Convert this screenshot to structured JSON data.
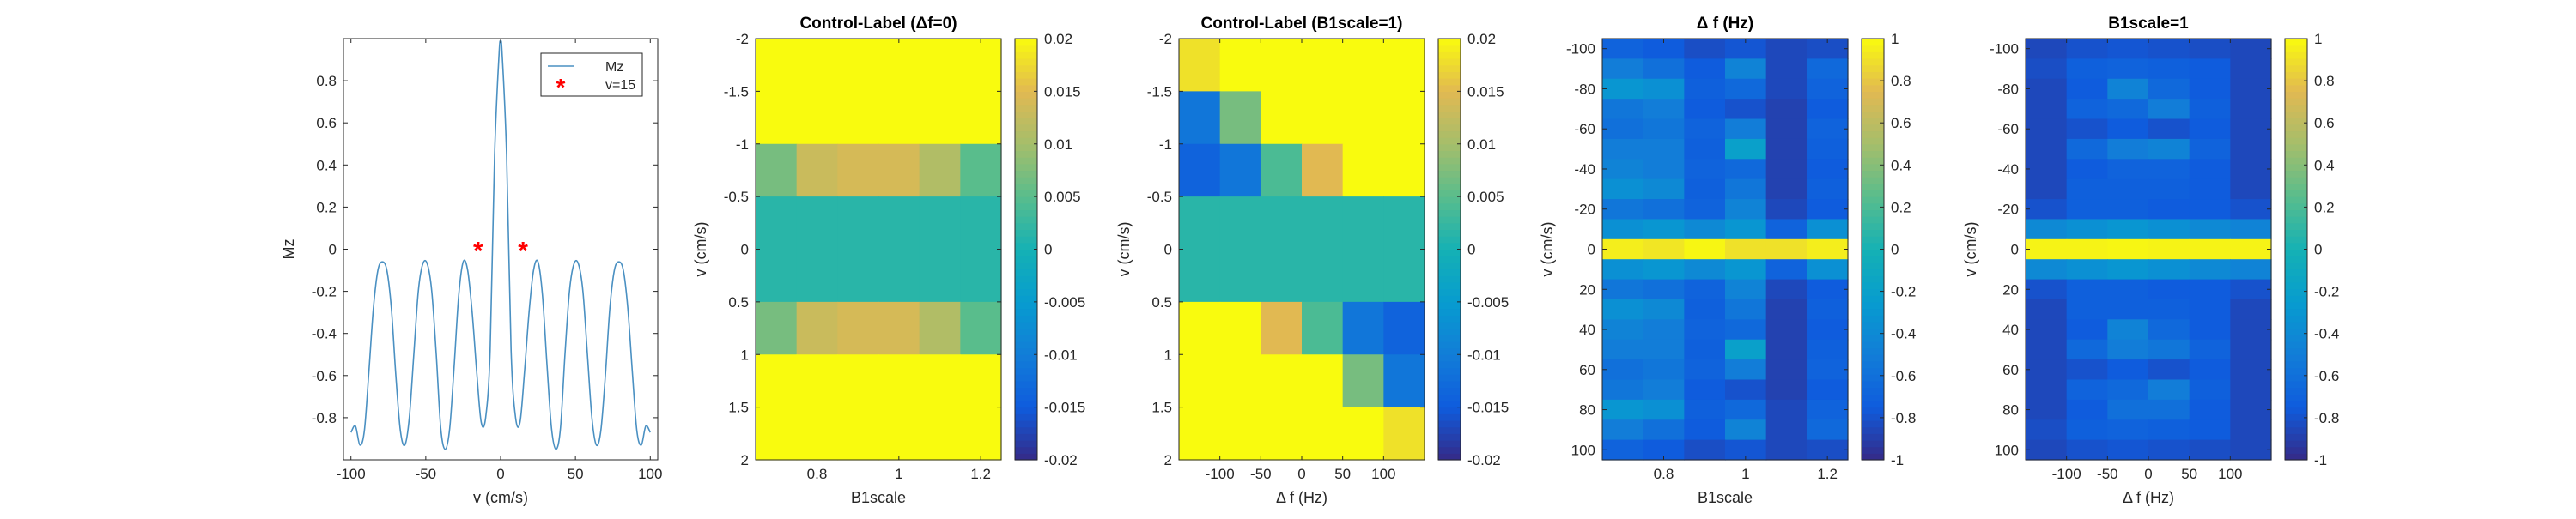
{
  "chart_data": [
    {
      "type": "line",
      "title": "",
      "xlabel": "v (cm/s)",
      "ylabel": "Mz",
      "xlim": [
        -105,
        105
      ],
      "ylim": [
        -1,
        1
      ],
      "xticks": [
        -100,
        -50,
        0,
        50,
        100
      ],
      "yticks": [
        -0.8,
        -0.6,
        -0.4,
        -0.2,
        0,
        0.2,
        0.4,
        0.6,
        0.8
      ],
      "legend_position": "top-right",
      "series": [
        {
          "name": "Mz",
          "kind": "line",
          "color": "#4A90C2",
          "x": [
            -100,
            -97,
            -94,
            -91,
            -88,
            -85,
            -82,
            -79,
            -76,
            -73,
            -70,
            -67,
            -64,
            -61,
            -58,
            -55,
            -52,
            -49,
            -46,
            -43,
            -40,
            -37,
            -34,
            -31,
            -28,
            -25,
            -22,
            -19,
            -16,
            -13,
            -10,
            -7,
            -4,
            -1,
            0,
            1,
            4,
            7,
            10,
            13,
            16,
            19,
            22,
            25,
            28,
            31,
            34,
            37,
            40,
            43,
            46,
            49,
            52,
            55,
            58,
            61,
            64,
            67,
            70,
            73,
            76,
            79,
            82,
            85,
            88,
            91,
            94,
            97,
            100
          ],
          "y": [
            -0.87,
            -0.84,
            -0.93,
            -0.86,
            -0.58,
            -0.28,
            -0.1,
            -0.06,
            -0.1,
            -0.28,
            -0.6,
            -0.86,
            -0.93,
            -0.8,
            -0.5,
            -0.2,
            -0.07,
            -0.07,
            -0.2,
            -0.5,
            -0.85,
            -0.95,
            -0.85,
            -0.55,
            -0.22,
            -0.06,
            -0.1,
            -0.3,
            -0.58,
            -0.82,
            -0.8,
            -0.48,
            0.45,
            0.93,
            0.98,
            0.93,
            0.45,
            -0.48,
            -0.8,
            -0.82,
            -0.58,
            -0.3,
            -0.1,
            -0.06,
            -0.22,
            -0.55,
            -0.85,
            -0.95,
            -0.85,
            -0.5,
            -0.2,
            -0.07,
            -0.07,
            -0.2,
            -0.5,
            -0.8,
            -0.93,
            -0.86,
            -0.6,
            -0.28,
            -0.1,
            -0.06,
            -0.1,
            -0.28,
            -0.58,
            -0.86,
            -0.93,
            -0.84,
            -0.87
          ]
        },
        {
          "name": "v=15",
          "kind": "marker",
          "color": "#FF0000",
          "x": [
            -15,
            15
          ],
          "y": [
            0,
            0
          ]
        }
      ]
    },
    {
      "type": "heatmap",
      "title": "Control-Label (Δf=0)",
      "xlabel": "B1scale",
      "ylabel": "v (cm/s)",
      "xticks": [
        0.8,
        1,
        1.2
      ],
      "xlim": [
        0.65,
        1.25
      ],
      "yticks": [
        -2,
        -1.5,
        -1,
        -0.5,
        0,
        0.5,
        1,
        1.5,
        2
      ],
      "ylim": [
        -2,
        2
      ],
      "y_reversed": true,
      "clim": [
        -0.02,
        0.02
      ],
      "colorbar_ticks": [
        -0.02,
        -0.015,
        -0.01,
        -0.005,
        0,
        0.005,
        0.01,
        0.015,
        0.02
      ],
      "x_centers": [
        0.7,
        0.8,
        0.9,
        1.0,
        1.1,
        1.2
      ],
      "y_centers": [
        -1.75,
        -1.25,
        -0.75,
        -0.25,
        0.25,
        0.75,
        1.25,
        1.75
      ],
      "values": [
        [
          0.02,
          0.02,
          0.02,
          0.02,
          0.02,
          0.02
        ],
        [
          0.02,
          0.02,
          0.02,
          0.02,
          0.02,
          0.02
        ],
        [
          0.007,
          0.013,
          0.014,
          0.014,
          0.011,
          0.005
        ],
        [
          0.0015,
          0.0015,
          0.0015,
          0.0015,
          0.0015,
          0.0015
        ],
        [
          0.0015,
          0.0015,
          0.0015,
          0.0015,
          0.0015,
          0.0015
        ],
        [
          0.007,
          0.013,
          0.014,
          0.014,
          0.011,
          0.005
        ],
        [
          0.02,
          0.02,
          0.02,
          0.02,
          0.02,
          0.02
        ],
        [
          0.02,
          0.02,
          0.02,
          0.02,
          0.02,
          0.02
        ]
      ]
    },
    {
      "type": "heatmap",
      "title": "Control-Label (B1scale=1)",
      "xlabel": "Δ f (Hz)",
      "ylabel": "v (cm/s)",
      "xticks": [
        -100,
        -50,
        0,
        50,
        100
      ],
      "xlim": [
        -150,
        150
      ],
      "yticks": [
        -2,
        -1.5,
        -1,
        -0.5,
        0,
        0.5,
        1,
        1.5,
        2
      ],
      "ylim": [
        -2,
        2
      ],
      "y_reversed": true,
      "clim": [
        -0.02,
        0.02
      ],
      "colorbar_ticks": [
        -0.02,
        -0.015,
        -0.01,
        -0.005,
        0,
        0.005,
        0.01,
        0.015,
        0.02
      ],
      "x_centers": [
        -125,
        -75,
        -25,
        25,
        75,
        125
      ],
      "y_centers": [
        -1.75,
        -1.25,
        -0.75,
        -0.25,
        0.25,
        0.75,
        1.25,
        1.75
      ],
      "values": [
        [
          0.018,
          0.02,
          0.02,
          0.02,
          0.02,
          0.02
        ],
        [
          -0.011,
          0.007,
          0.02,
          0.02,
          0.02,
          0.02
        ],
        [
          -0.014,
          -0.011,
          0.004,
          0.015,
          0.02,
          0.02
        ],
        [
          0.0015,
          0.0015,
          0.0015,
          0.0015,
          0.0015,
          0.0015
        ],
        [
          0.0015,
          0.0015,
          0.0015,
          0.0015,
          0.0015,
          0.0015
        ],
        [
          0.02,
          0.02,
          0.015,
          0.004,
          -0.011,
          -0.014
        ],
        [
          0.02,
          0.02,
          0.02,
          0.02,
          0.007,
          -0.011
        ],
        [
          0.02,
          0.02,
          0.02,
          0.02,
          0.02,
          0.018
        ]
      ]
    },
    {
      "type": "heatmap",
      "title": "Δ f (Hz)",
      "xlabel": "B1scale",
      "ylabel": "v (cm/s)",
      "xticks": [
        0.8,
        1,
        1.2
      ],
      "xlim": [
        0.65,
        1.25
      ],
      "yticks": [
        -100,
        -80,
        -60,
        -40,
        -20,
        0,
        20,
        40,
        60,
        80,
        100
      ],
      "ylim": [
        -105,
        105
      ],
      "y_reversed": true,
      "clim": [
        -1,
        1
      ],
      "colorbar_ticks": [
        -1,
        -0.8,
        -0.6,
        -0.4,
        -0.2,
        0,
        0.2,
        0.4,
        0.6,
        0.8,
        1
      ],
      "x_centers": [
        0.7,
        0.8,
        0.9,
        1.0,
        1.1,
        1.2
      ],
      "y_centers": [
        -100,
        -90,
        -80,
        -70,
        -60,
        -50,
        -40,
        -30,
        -20,
        -10,
        0,
        10,
        20,
        30,
        40,
        50,
        60,
        70,
        80,
        90,
        100
      ],
      "values": [
        [
          -0.7,
          -0.75,
          -0.82,
          -0.78,
          -0.85,
          -0.82
        ],
        [
          -0.5,
          -0.6,
          -0.75,
          -0.45,
          -0.85,
          -0.65
        ],
        [
          -0.3,
          -0.35,
          -0.72,
          -0.65,
          -0.85,
          -0.7
        ],
        [
          -0.55,
          -0.5,
          -0.75,
          -0.8,
          -0.88,
          -0.75
        ],
        [
          -0.6,
          -0.55,
          -0.7,
          -0.5,
          -0.88,
          -0.7
        ],
        [
          -0.5,
          -0.5,
          -0.72,
          -0.2,
          -0.88,
          -0.72
        ],
        [
          -0.45,
          -0.5,
          -0.7,
          -0.65,
          -0.88,
          -0.75
        ],
        [
          -0.35,
          -0.4,
          -0.72,
          -0.55,
          -0.88,
          -0.72
        ],
        [
          -0.55,
          -0.6,
          -0.7,
          -0.45,
          -0.85,
          -0.75
        ],
        [
          -0.35,
          -0.3,
          -0.4,
          -0.3,
          -0.7,
          -0.35
        ],
        [
          0.95,
          0.92,
          0.98,
          0.9,
          0.9,
          0.95
        ],
        [
          -0.35,
          -0.3,
          -0.4,
          -0.3,
          -0.7,
          -0.35
        ],
        [
          -0.55,
          -0.6,
          -0.7,
          -0.45,
          -0.85,
          -0.75
        ],
        [
          -0.35,
          -0.4,
          -0.72,
          -0.55,
          -0.88,
          -0.72
        ],
        [
          -0.45,
          -0.5,
          -0.7,
          -0.65,
          -0.88,
          -0.75
        ],
        [
          -0.5,
          -0.5,
          -0.72,
          -0.2,
          -0.88,
          -0.72
        ],
        [
          -0.6,
          -0.55,
          -0.7,
          -0.5,
          -0.88,
          -0.7
        ],
        [
          -0.55,
          -0.5,
          -0.75,
          -0.8,
          -0.88,
          -0.75
        ],
        [
          -0.3,
          -0.35,
          -0.72,
          -0.65,
          -0.85,
          -0.7
        ],
        [
          -0.5,
          -0.6,
          -0.75,
          -0.45,
          -0.85,
          -0.65
        ],
        [
          -0.7,
          -0.75,
          -0.82,
          -0.78,
          -0.85,
          -0.82
        ]
      ]
    },
    {
      "type": "heatmap",
      "title": "B1scale=1",
      "xlabel": "Δ f (Hz)",
      "ylabel": "v (cm/s)",
      "xticks": [
        -100,
        -50,
        0,
        50,
        100
      ],
      "xlim": [
        -150,
        150
      ],
      "yticks": [
        -100,
        -80,
        -60,
        -40,
        -20,
        0,
        20,
        40,
        60,
        80,
        100
      ],
      "ylim": [
        -105,
        105
      ],
      "y_reversed": true,
      "clim": [
        -1,
        1
      ],
      "colorbar_ticks": [
        -1,
        -0.8,
        -0.6,
        -0.4,
        -0.2,
        0,
        0.2,
        0.4,
        0.6,
        0.8,
        1
      ],
      "x_centers": [
        -125,
        -75,
        -25,
        25,
        75,
        125
      ],
      "y_centers": [
        -100,
        -90,
        -80,
        -70,
        -60,
        -50,
        -40,
        -30,
        -20,
        -10,
        0,
        10,
        20,
        30,
        40,
        50,
        60,
        70,
        80,
        90,
        100
      ],
      "values": [
        [
          -0.85,
          -0.8,
          -0.78,
          -0.8,
          -0.82,
          -0.85
        ],
        [
          -0.82,
          -0.72,
          -0.7,
          -0.72,
          -0.75,
          -0.85
        ],
        [
          -0.85,
          -0.75,
          -0.45,
          -0.65,
          -0.75,
          -0.85
        ],
        [
          -0.85,
          -0.7,
          -0.65,
          -0.5,
          -0.72,
          -0.85
        ],
        [
          -0.85,
          -0.8,
          -0.75,
          -0.8,
          -0.75,
          -0.85
        ],
        [
          -0.85,
          -0.65,
          -0.5,
          -0.45,
          -0.7,
          -0.85
        ],
        [
          -0.85,
          -0.75,
          -0.7,
          -0.7,
          -0.75,
          -0.85
        ],
        [
          -0.85,
          -0.72,
          -0.72,
          -0.72,
          -0.75,
          -0.85
        ],
        [
          -0.8,
          -0.72,
          -0.72,
          -0.75,
          -0.75,
          -0.8
        ],
        [
          -0.4,
          -0.35,
          -0.3,
          -0.35,
          -0.4,
          -0.45
        ],
        [
          0.97,
          0.97,
          0.98,
          0.97,
          0.97,
          0.97
        ],
        [
          -0.4,
          -0.35,
          -0.3,
          -0.35,
          -0.4,
          -0.45
        ],
        [
          -0.8,
          -0.72,
          -0.72,
          -0.75,
          -0.75,
          -0.8
        ],
        [
          -0.85,
          -0.72,
          -0.72,
          -0.72,
          -0.75,
          -0.85
        ],
        [
          -0.85,
          -0.75,
          -0.45,
          -0.65,
          -0.75,
          -0.85
        ],
        [
          -0.85,
          -0.65,
          -0.5,
          -0.55,
          -0.7,
          -0.85
        ],
        [
          -0.85,
          -0.8,
          -0.75,
          -0.8,
          -0.75,
          -0.85
        ],
        [
          -0.85,
          -0.7,
          -0.65,
          -0.5,
          -0.72,
          -0.85
        ],
        [
          -0.85,
          -0.75,
          -0.6,
          -0.6,
          -0.75,
          -0.85
        ],
        [
          -0.82,
          -0.72,
          -0.7,
          -0.72,
          -0.75,
          -0.85
        ],
        [
          -0.85,
          -0.8,
          -0.78,
          -0.8,
          -0.82,
          -0.85
        ]
      ]
    }
  ]
}
